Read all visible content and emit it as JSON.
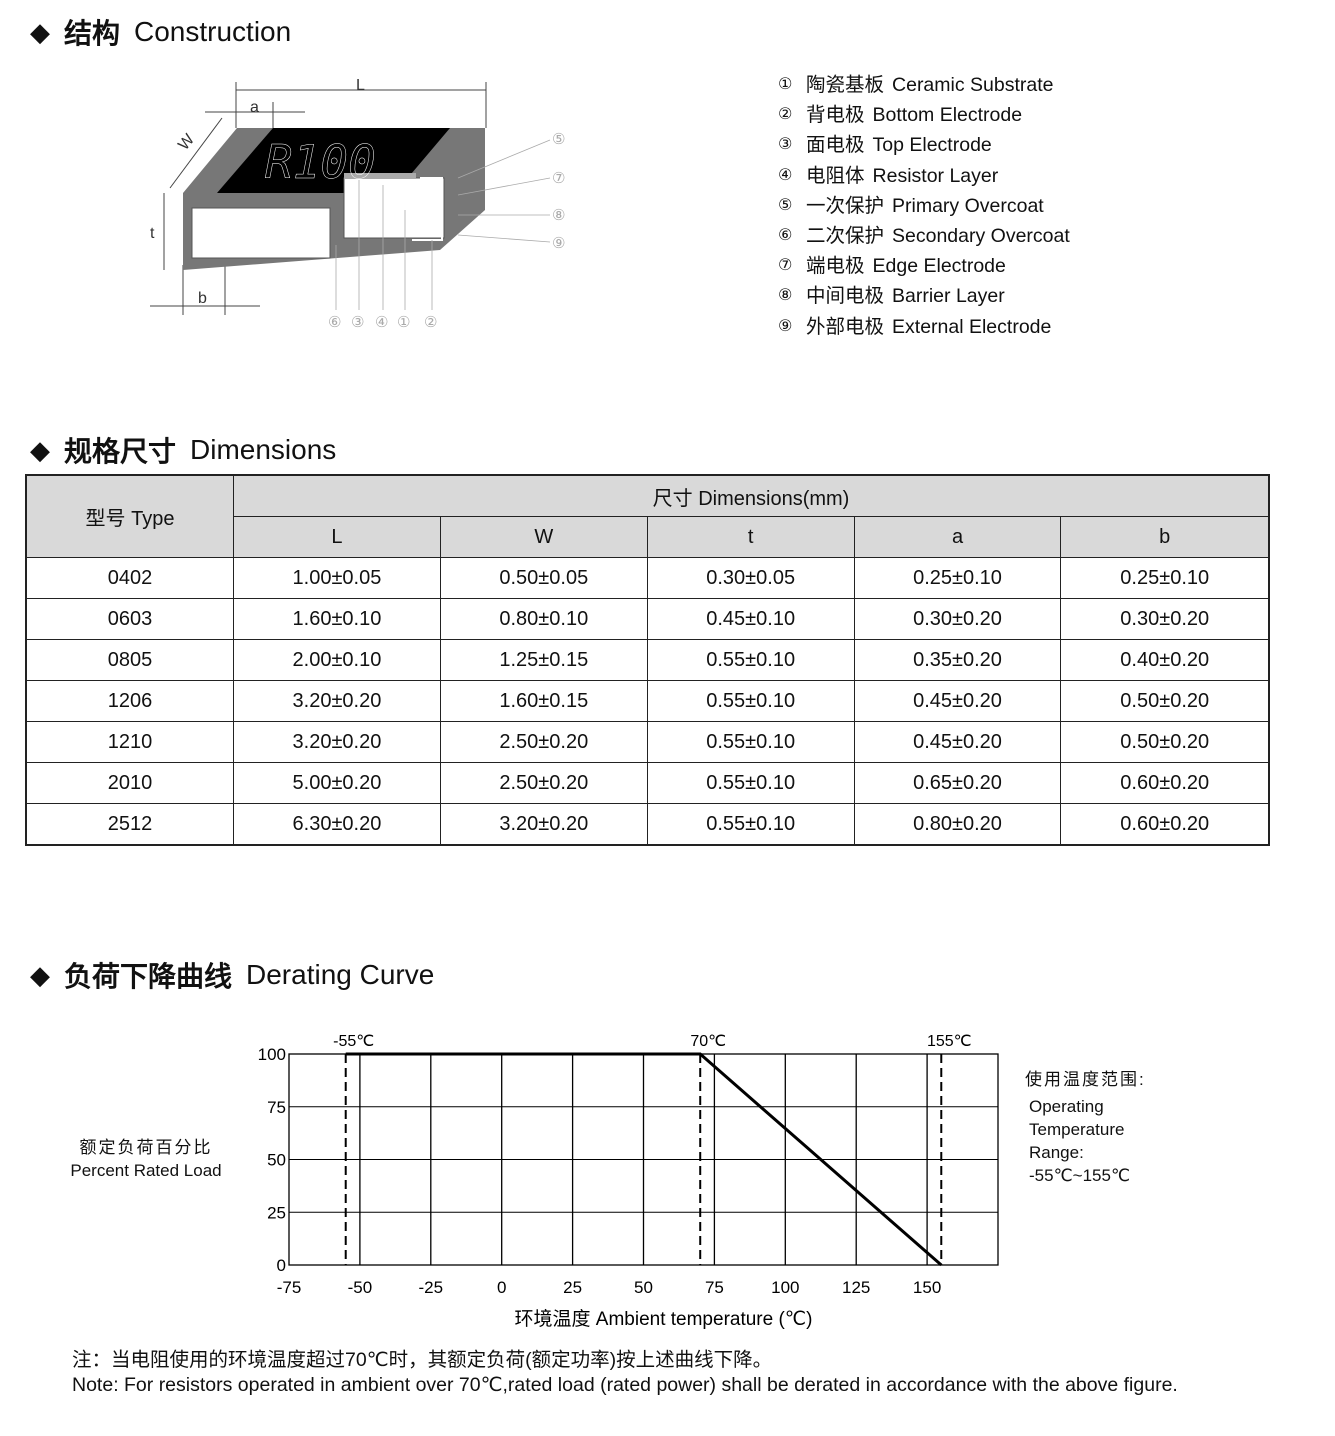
{
  "construction": {
    "title_cn": "结构",
    "title_en": "Construction",
    "diagram": {
      "marking": "R100",
      "dimension_labels": [
        "L",
        "a",
        "W",
        "t",
        "b"
      ],
      "side_callouts": [
        "⑤",
        "⑦",
        "⑧",
        "⑨"
      ],
      "bottom_callouts": [
        "⑥",
        "③",
        "④",
        "①",
        "②"
      ]
    },
    "legend": [
      {
        "num": "①",
        "cn": "陶瓷基板",
        "en": "Ceramic Substrate"
      },
      {
        "num": "②",
        "cn": "背电极",
        "en": "Bottom Electrode"
      },
      {
        "num": "③",
        "cn": "面电极",
        "en": "Top Electrode"
      },
      {
        "num": "④",
        "cn": "电阻体",
        "en": "Resistor Layer"
      },
      {
        "num": "⑤",
        "cn": "一次保护",
        "en": "Primary Overcoat"
      },
      {
        "num": "⑥",
        "cn": "二次保护",
        "en": "Secondary Overcoat"
      },
      {
        "num": "⑦",
        "cn": "端电极",
        "en": "Edge Electrode"
      },
      {
        "num": "⑧",
        "cn": "中间电极",
        "en": "Barrier Layer"
      },
      {
        "num": "⑨",
        "cn": "外部电极",
        "en": "External Electrode"
      }
    ]
  },
  "dimensions": {
    "title_cn": "规格尺寸",
    "title_en": "Dimensions",
    "type_header": "型号 Type",
    "group_header": "尺寸 Dimensions(mm)",
    "columns": [
      "L",
      "W",
      "t",
      "a",
      "b"
    ],
    "rows": [
      [
        "0402",
        "1.00±0.05",
        "0.50±0.05",
        "0.30±0.05",
        "0.25±0.10",
        "0.25±0.10"
      ],
      [
        "0603",
        "1.60±0.10",
        "0.80±0.10",
        "0.45±0.10",
        "0.30±0.20",
        "0.30±0.20"
      ],
      [
        "0805",
        "2.00±0.10",
        "1.25±0.15",
        "0.55±0.10",
        "0.35±0.20",
        "0.40±0.20"
      ],
      [
        "1206",
        "3.20±0.20",
        "1.60±0.15",
        "0.55±0.10",
        "0.45±0.20",
        "0.50±0.20"
      ],
      [
        "1210",
        "3.20±0.20",
        "2.50±0.20",
        "0.55±0.10",
        "0.45±0.20",
        "0.50±0.20"
      ],
      [
        "2010",
        "5.00±0.20",
        "2.50±0.20",
        "0.55±0.10",
        "0.65±0.20",
        "0.60±0.20"
      ],
      [
        "2512",
        "6.30±0.20",
        "3.20±0.20",
        "0.55±0.10",
        "0.80±0.20",
        "0.60±0.20"
      ]
    ]
  },
  "derating": {
    "title_cn": "负荷下降曲线",
    "title_en": "Derating Curve",
    "ylabel_cn": "额定负荷百分比",
    "ylabel_en": "Percent Rated Load",
    "range_title": "使用温度范围:",
    "range_lines": [
      "Operating",
      "Temperature",
      "Range:",
      "-55℃~155℃"
    ],
    "note_cn": "注：当电阻使用的环境温度超过70℃时，其额定负荷(额定功率)按上述曲线下降。",
    "note_en": "Note: For resistors operated in ambient over 70℃,rated  load (rated power) shall be derated in accordance with the above figure."
  },
  "chart_data": {
    "type": "line",
    "xlabel": "环境温度 Ambient temperature (℃)",
    "ylabel": "额定负荷百分比 Percent Rated Load",
    "xlim": [
      -75,
      175
    ],
    "ylim": [
      0,
      100
    ],
    "x_ticks": [
      -75,
      -50,
      -25,
      0,
      25,
      50,
      75,
      100,
      125,
      150
    ],
    "y_ticks": [
      0,
      25,
      50,
      75,
      100
    ],
    "grid": true,
    "series": [
      {
        "x": [
          -55,
          70,
          155
        ],
        "y": [
          100,
          100,
          0
        ]
      }
    ],
    "markers": [
      {
        "x": -55,
        "label": "-55℃",
        "style": "dashed"
      },
      {
        "x": 70,
        "label": "70℃",
        "style": "dashed"
      },
      {
        "x": 155,
        "label": "155℃",
        "style": "dashed"
      }
    ],
    "line_color": "#000000"
  }
}
